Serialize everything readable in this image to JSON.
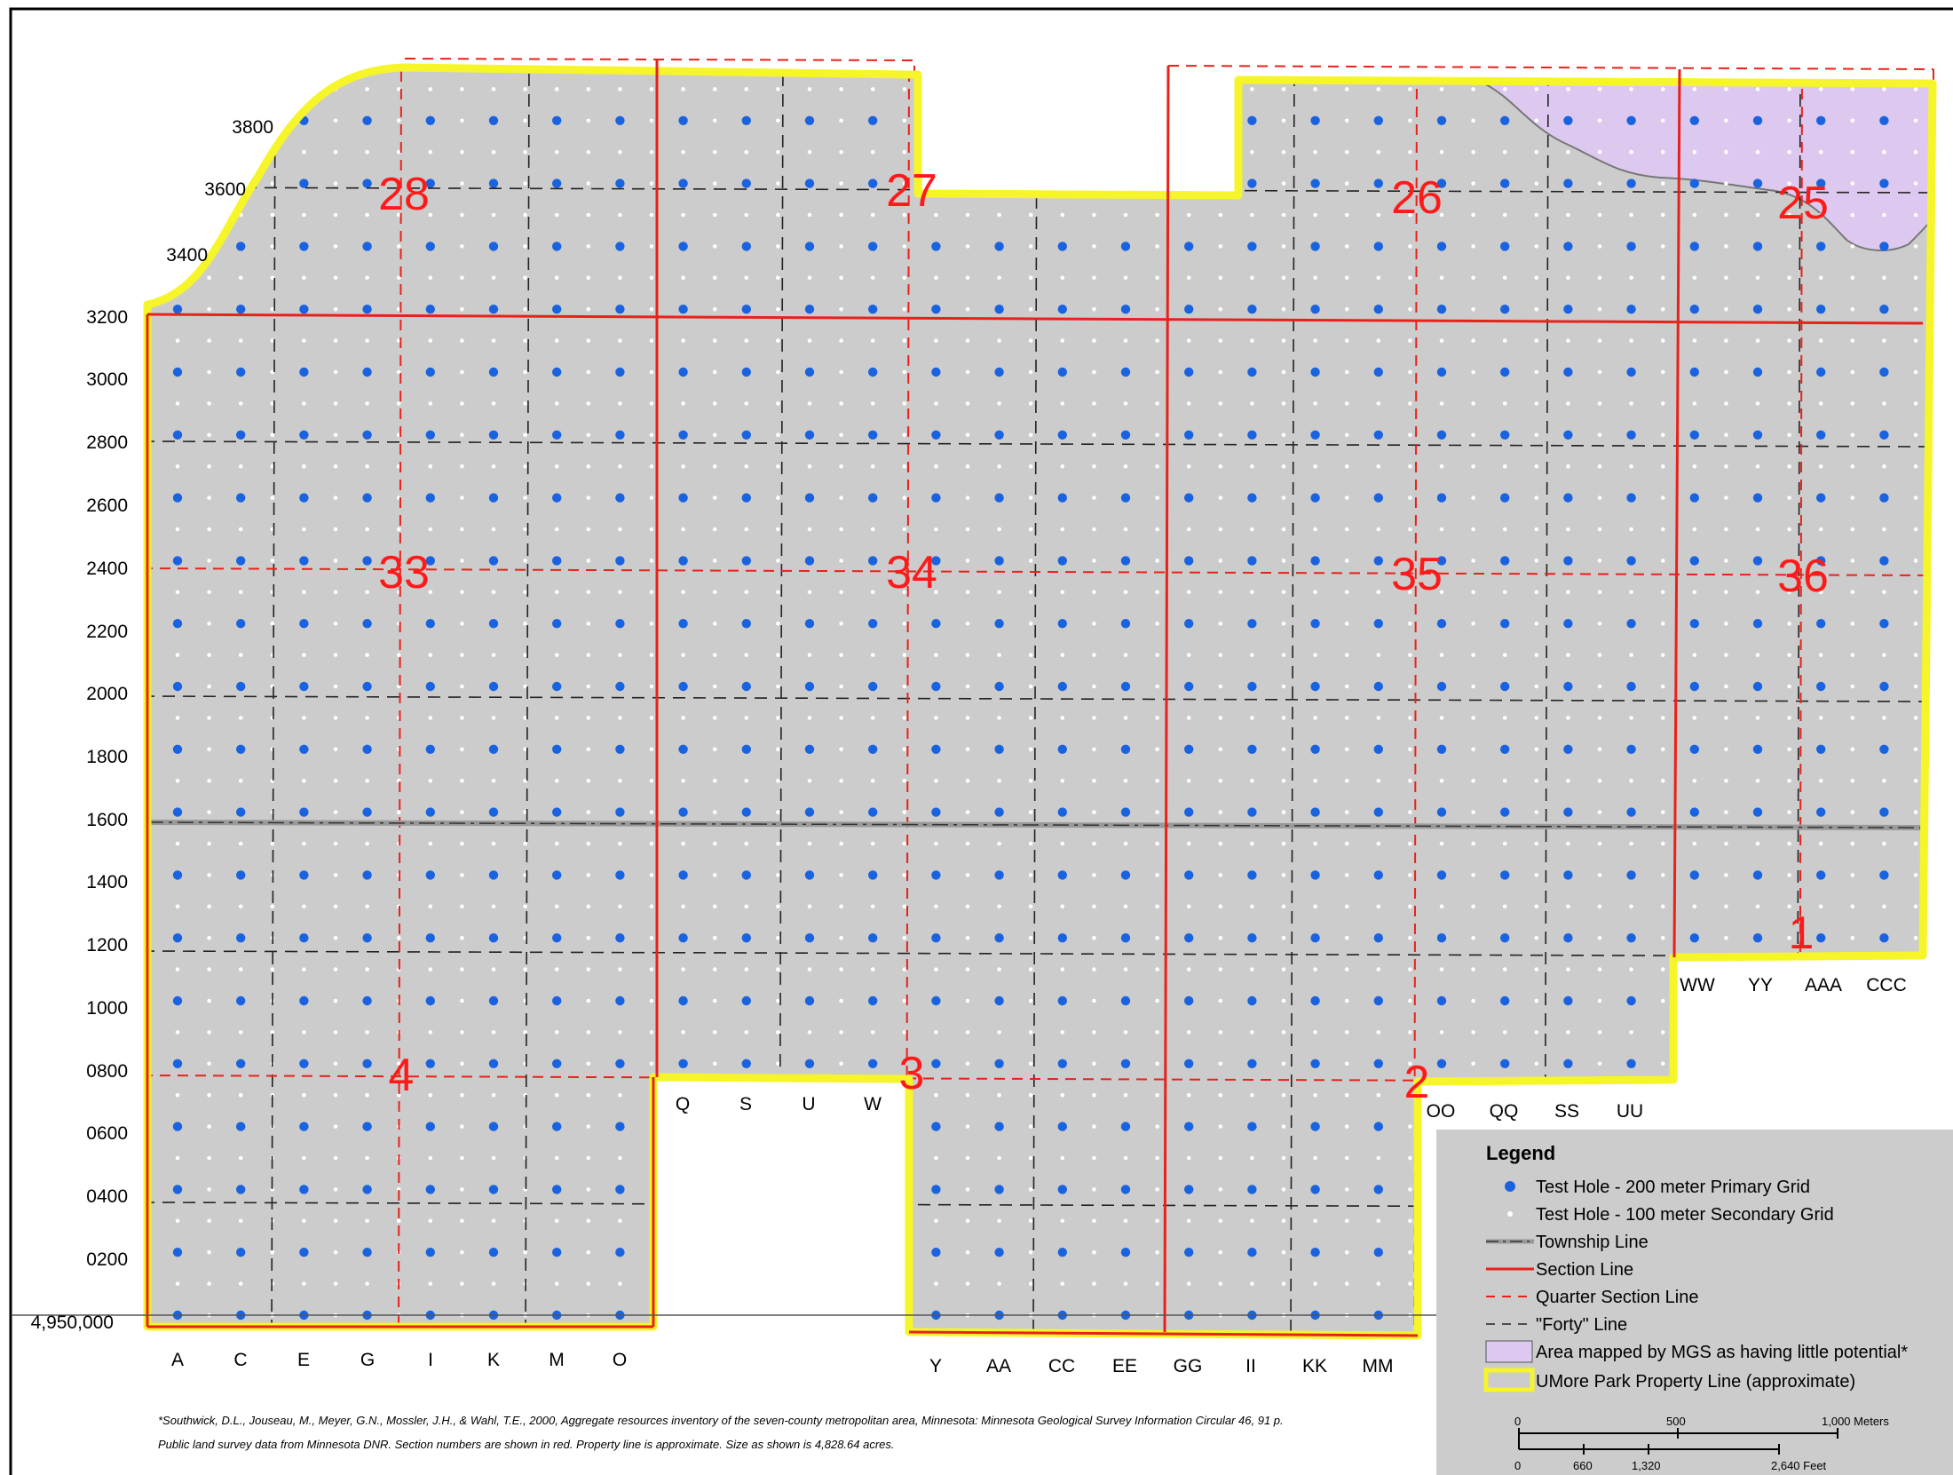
{
  "map": {
    "y_labels": [
      "3800",
      "3600",
      "3400",
      "3200",
      "3000",
      "2800",
      "2600",
      "2400",
      "2200",
      "2000",
      "1800",
      "1600",
      "1400",
      "1200",
      "1000",
      "0800",
      "0600",
      "0400",
      "0200",
      "4,950,000"
    ],
    "x_labels": [
      "A",
      "C",
      "E",
      "G",
      "I",
      "K",
      "M",
      "O",
      "Q",
      "S",
      "U",
      "W",
      "Y",
      "AA",
      "CC",
      "EE",
      "GG",
      "II",
      "KK",
      "MM",
      "OO",
      "QQ",
      "SS",
      "UU",
      "WW",
      "YY",
      "AAA",
      "CCC"
    ],
    "section_numbers": [
      "28",
      "27",
      "26",
      "25",
      "33",
      "34",
      "35",
      "36",
      "4",
      "3",
      "2",
      "1"
    ],
    "colors": {
      "background_area": "#cccccc",
      "primary_hole": "#1a63e0",
      "secondary_hole": "#ffffff",
      "section_line": "#e8221b",
      "property_line": "#f5f52a",
      "mgs_area": "#ddc9f0",
      "township_line": "#888888"
    }
  },
  "legend": {
    "title": "Legend",
    "items": [
      {
        "icon": "blue-dot-icon",
        "label": "Test Hole - 200 meter Primary Grid"
      },
      {
        "icon": "white-dot-icon",
        "label": "Test Hole - 100 meter Secondary Grid"
      },
      {
        "icon": "township-line-icon",
        "label": "Township Line"
      },
      {
        "icon": "section-line-icon",
        "label": "Section Line"
      },
      {
        "icon": "quarter-section-line-icon",
        "label": "Quarter Section Line"
      },
      {
        "icon": "forty-line-icon",
        "label": "\"Forty\" Line"
      },
      {
        "icon": "mgs-area-swatch-icon",
        "label": "Area mapped by MGS as having little potential*"
      },
      {
        "icon": "property-line-swatch-icon",
        "label": "UMore Park Property Line (approximate)"
      }
    ]
  },
  "scalebar": {
    "meter_ticks": [
      "0",
      "500",
      "1,000 Meters"
    ],
    "feet_ticks": [
      "0",
      "660",
      "1,320",
      "2,640 Feet"
    ]
  },
  "footnote": {
    "line1": "*Southwick, D.L., Jouseau, M., Meyer, G.N., Mossler, J.H., & Wahl, T.E., 2000, Aggregate resources inventory of the seven-county metropolitan area, Minnesota:  Minnesota Geological Survey Information Circular 46, 91 p.",
    "line2": "Public land survey data from Minnesota DNR.  Section numbers are shown in red. Property line is approximate.  Size as shown is 4,828.64 acres."
  }
}
